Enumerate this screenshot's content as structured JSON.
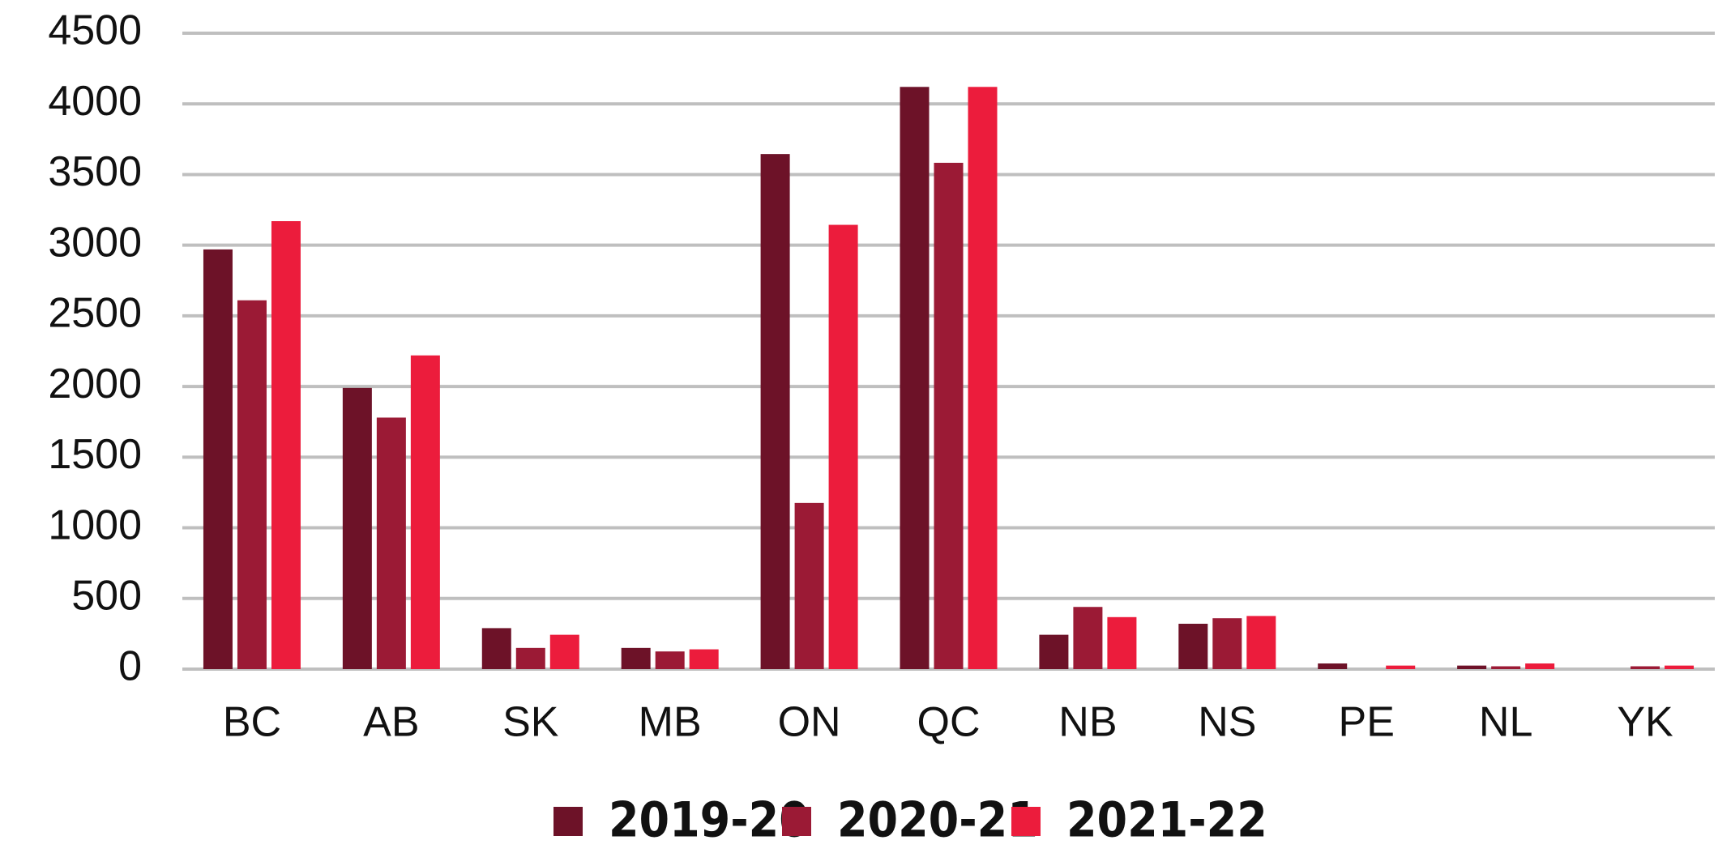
{
  "chart_data": {
    "type": "bar",
    "categories": [
      "BC",
      "AB",
      "SK",
      "MB",
      "ON",
      "QC",
      "NB",
      "NS",
      "PE",
      "NL",
      "YK"
    ],
    "series": [
      {
        "name": "2019-20",
        "color": "#6d1228",
        "values": [
          2970,
          1990,
          290,
          150,
          3645,
          4120,
          243,
          321,
          40,
          25,
          null
        ]
      },
      {
        "name": "2020-21",
        "color": "#9b1a35",
        "values": [
          2610,
          1780,
          150,
          125,
          1176,
          3583,
          440,
          360,
          null,
          20,
          20
        ]
      },
      {
        "name": "2021-22",
        "color": "#ec1c3c",
        "values": [
          3170,
          2220,
          243,
          140,
          3144,
          4120,
          368,
          376,
          25,
          40,
          25
        ]
      }
    ],
    "ylim": [
      0,
      4500
    ],
    "yticks": [
      0,
      500,
      1000,
      1500,
      2000,
      2500,
      3000,
      3500,
      4000,
      4500
    ],
    "grid": true,
    "legend": "bottom"
  }
}
